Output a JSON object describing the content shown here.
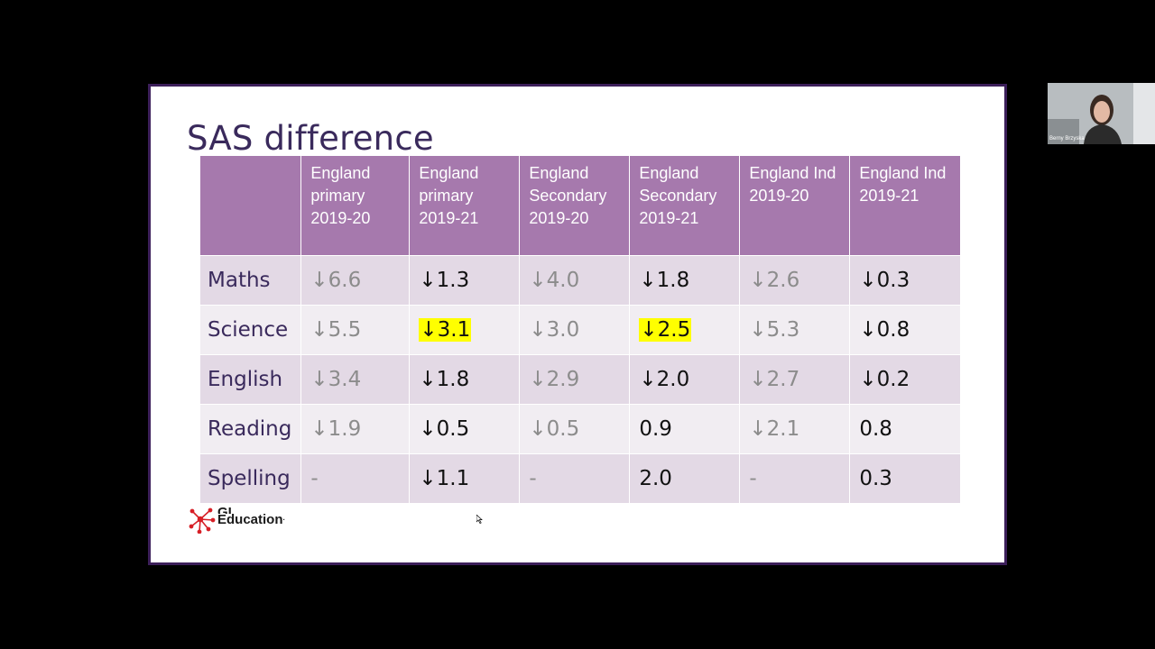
{
  "slide": {
    "title": "SAS difference",
    "columns": [
      "",
      "England primary 2019-20",
      "England primary 2019-21",
      "England Secondary 2019-20",
      "England Secondary 2019-21",
      "England Ind 2019-20",
      "England Ind 2019-21"
    ],
    "rows": [
      {
        "label": "Maths",
        "cells": [
          "↓6.6",
          "↓1.3",
          "↓4.0",
          "↓1.8",
          "↓2.6",
          "↓0.3"
        ]
      },
      {
        "label": "Science",
        "cells": [
          "↓5.5",
          "↓3.1",
          "↓3.0",
          "↓2.5",
          "↓5.3",
          "↓0.8"
        ]
      },
      {
        "label": "English",
        "cells": [
          "↓3.4",
          "↓1.8",
          "↓2.9",
          "↓2.0",
          "↓2.7",
          "↓0.2"
        ]
      },
      {
        "label": "Reading",
        "cells": [
          "↓1.9",
          "↓0.5",
          "↓0.5",
          "0.9",
          "↓2.1",
          "0.8"
        ]
      },
      {
        "label": "Spelling",
        "cells": [
          "-",
          "↓1.1",
          "-",
          "2.0",
          "-",
          "0.3"
        ]
      }
    ],
    "highlighted_cells": [
      "Science|England primary 2019-21",
      "Science|England Secondary 2019-21"
    ],
    "logo": {
      "line1": "GL",
      "line2": "Education"
    },
    "colors": {
      "header": "#a679ad",
      "highlight": "#ffff00",
      "title": "#3a2a5c"
    }
  },
  "webcam": {
    "participant_name": "Berny Brzyska"
  }
}
